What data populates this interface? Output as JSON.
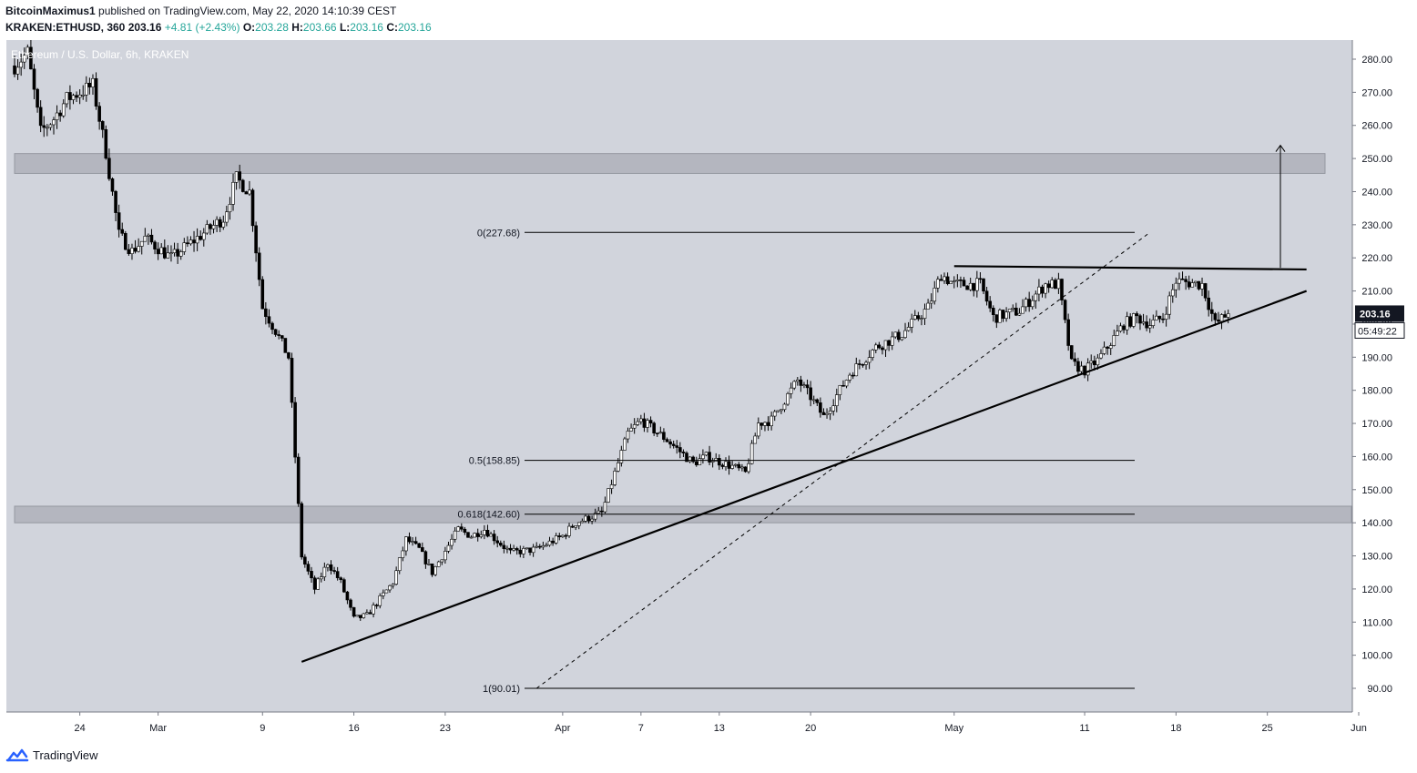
{
  "header": {
    "publisher": "BitcoinMaximus1",
    "published_text": "published on TradingView.com, May 22, 2020 14:10:39 CEST",
    "symbol": "KRAKEN:ETHUSD, 360",
    "last": "203.16",
    "change": "+4.81 (+2.43%)",
    "o_label": "O:",
    "o_value": "203.28",
    "h_label": "H:",
    "h_value": "203.66",
    "l_label": "L:",
    "l_value": "203.16",
    "c_label": "C:",
    "c_value": "203.16"
  },
  "legend": "Ethereum / U.S. Dollar, 6h, KRAKEN",
  "footer": {
    "brand": "TradingView"
  },
  "chart_data": {
    "type": "candlestick",
    "title": "Ethereum / U.S. Dollar, 6h, KRAKEN",
    "x_range": [
      "2020-02-19",
      "2020-06-01"
    ],
    "ylim": [
      85,
      290
    ],
    "y_ticks": [
      90,
      100,
      110,
      120,
      130,
      140,
      150,
      160,
      170,
      180,
      190,
      200,
      210,
      220,
      230,
      240,
      250,
      260,
      270,
      280
    ],
    "y_tick_labels": [
      "90.00",
      "100.00",
      "110.00",
      "120.00",
      "130.00",
      "140.00",
      "150.00",
      "160.00",
      "170.00",
      "180.00",
      "190.00",
      "200.00",
      "210.00",
      "220.00",
      "230.00",
      "240.00",
      "250.00",
      "260.00",
      "270.00",
      "280.00"
    ],
    "x_ticks": [
      {
        "date": "2020-02-24",
        "label": "24"
      },
      {
        "date": "2020-03-01",
        "label": "Mar"
      },
      {
        "date": "2020-03-09",
        "label": "9"
      },
      {
        "date": "2020-03-16",
        "label": "16"
      },
      {
        "date": "2020-03-23",
        "label": "23"
      },
      {
        "date": "2020-04-01",
        "label": "Apr"
      },
      {
        "date": "2020-04-07",
        "label": "7"
      },
      {
        "date": "2020-04-13",
        "label": "13"
      },
      {
        "date": "2020-04-20",
        "label": "20"
      },
      {
        "date": "2020-05-01",
        "label": "May"
      },
      {
        "date": "2020-05-11",
        "label": "11"
      },
      {
        "date": "2020-05-18",
        "label": "18"
      },
      {
        "date": "2020-05-25",
        "label": "25"
      },
      {
        "date": "2020-06-01",
        "label": "Jun"
      }
    ],
    "anchors": [
      [
        "2020-02-19",
        278
      ],
      [
        "2020-02-20",
        282
      ],
      [
        "2020-02-21",
        258
      ],
      [
        "2020-02-22",
        262
      ],
      [
        "2020-02-23",
        268
      ],
      [
        "2020-02-25",
        272
      ],
      [
        "2020-02-26",
        252
      ],
      [
        "2020-02-27",
        227
      ],
      [
        "2020-02-28",
        222
      ],
      [
        "2020-02-29",
        226
      ],
      [
        "2020-03-02",
        220
      ],
      [
        "2020-03-04",
        226
      ],
      [
        "2020-03-06",
        232
      ],
      [
        "2020-03-07",
        244
      ],
      [
        "2020-03-08",
        240
      ],
      [
        "2020-03-09",
        205
      ],
      [
        "2020-03-10",
        198
      ],
      [
        "2020-03-11",
        190
      ],
      [
        "2020-03-12",
        130
      ],
      [
        "2020-03-13",
        120
      ],
      [
        "2020-03-14",
        128
      ],
      [
        "2020-03-15",
        122
      ],
      [
        "2020-03-16",
        111
      ],
      [
        "2020-03-17",
        112
      ],
      [
        "2020-03-18",
        117
      ],
      [
        "2020-03-19",
        122
      ],
      [
        "2020-03-20",
        135
      ],
      [
        "2020-03-21",
        132
      ],
      [
        "2020-03-22",
        125
      ],
      [
        "2020-03-24",
        138
      ],
      [
        "2020-03-25",
        136
      ],
      [
        "2020-03-26",
        138
      ],
      [
        "2020-03-28",
        131
      ],
      [
        "2020-03-30",
        132
      ],
      [
        "2020-04-01",
        136
      ],
      [
        "2020-04-02",
        140
      ],
      [
        "2020-04-04",
        143
      ],
      [
        "2020-04-06",
        167
      ],
      [
        "2020-04-07",
        171
      ],
      [
        "2020-04-09",
        165
      ],
      [
        "2020-04-11",
        158
      ],
      [
        "2020-04-12",
        160
      ],
      [
        "2020-04-14",
        157
      ],
      [
        "2020-04-15",
        155
      ],
      [
        "2020-04-16",
        170
      ],
      [
        "2020-04-17",
        171
      ],
      [
        "2020-04-19",
        183
      ],
      [
        "2020-04-20",
        178
      ],
      [
        "2020-04-21",
        172
      ],
      [
        "2020-04-23",
        185
      ],
      [
        "2020-04-25",
        193
      ],
      [
        "2020-04-27",
        197
      ],
      [
        "2020-04-29",
        205
      ],
      [
        "2020-04-30",
        215
      ],
      [
        "2020-05-01",
        212
      ],
      [
        "2020-05-03",
        212
      ],
      [
        "2020-05-04",
        202
      ],
      [
        "2020-05-06",
        204
      ],
      [
        "2020-05-08",
        212
      ],
      [
        "2020-05-09",
        212
      ],
      [
        "2020-05-10",
        188
      ],
      [
        "2020-05-11",
        186
      ],
      [
        "2020-05-12",
        189
      ],
      [
        "2020-05-14",
        200
      ],
      [
        "2020-05-15",
        202
      ],
      [
        "2020-05-16",
        200
      ],
      [
        "2020-05-17",
        202
      ],
      [
        "2020-05-18",
        213
      ],
      [
        "2020-05-20",
        212
      ],
      [
        "2020-05-21",
        200
      ],
      [
        "2020-05-22",
        203.16
      ]
    ],
    "last_price_label": "203.16",
    "countdown_label": "05:49:22",
    "fibonacci": [
      {
        "ratio_label": "0(227.68)",
        "price": 227.68
      },
      {
        "ratio_label": "0.5(158.85)",
        "price": 158.85
      },
      {
        "ratio_label": "0.618(142.60)",
        "price": 142.6
      },
      {
        "ratio_label": "1(90.01)",
        "price": 90.01
      }
    ],
    "zones": [
      {
        "from": 245.5,
        "to": 251.5
      },
      {
        "from": 140,
        "to": 145
      }
    ],
    "trendlines": [
      {
        "name": "ascending-support",
        "points": [
          [
            "2020-03-12",
            98
          ],
          [
            "2020-05-28",
            210
          ]
        ]
      },
      {
        "name": "horizontal-resistance",
        "points": [
          [
            "2020-05-01",
            217.5
          ],
          [
            "2020-05-28",
            216.5
          ]
        ]
      },
      {
        "name": "fib-diagonal",
        "dashed": true,
        "points": [
          [
            "2020-03-30",
            90
          ],
          [
            "2020-05-16",
            227.68
          ]
        ]
      }
    ],
    "target_arrow": {
      "date": "2020-05-26",
      "from": 217,
      "to": 254
    },
    "colors": {
      "background": "#d1d4dc",
      "up_candle_fill": "#ffffff",
      "down_candle_fill": "#000000",
      "zone": "#a9acb5",
      "price_label_bg": "#131722",
      "accent_green": "#26a69a",
      "brand_blue": "#2962ff"
    }
  }
}
